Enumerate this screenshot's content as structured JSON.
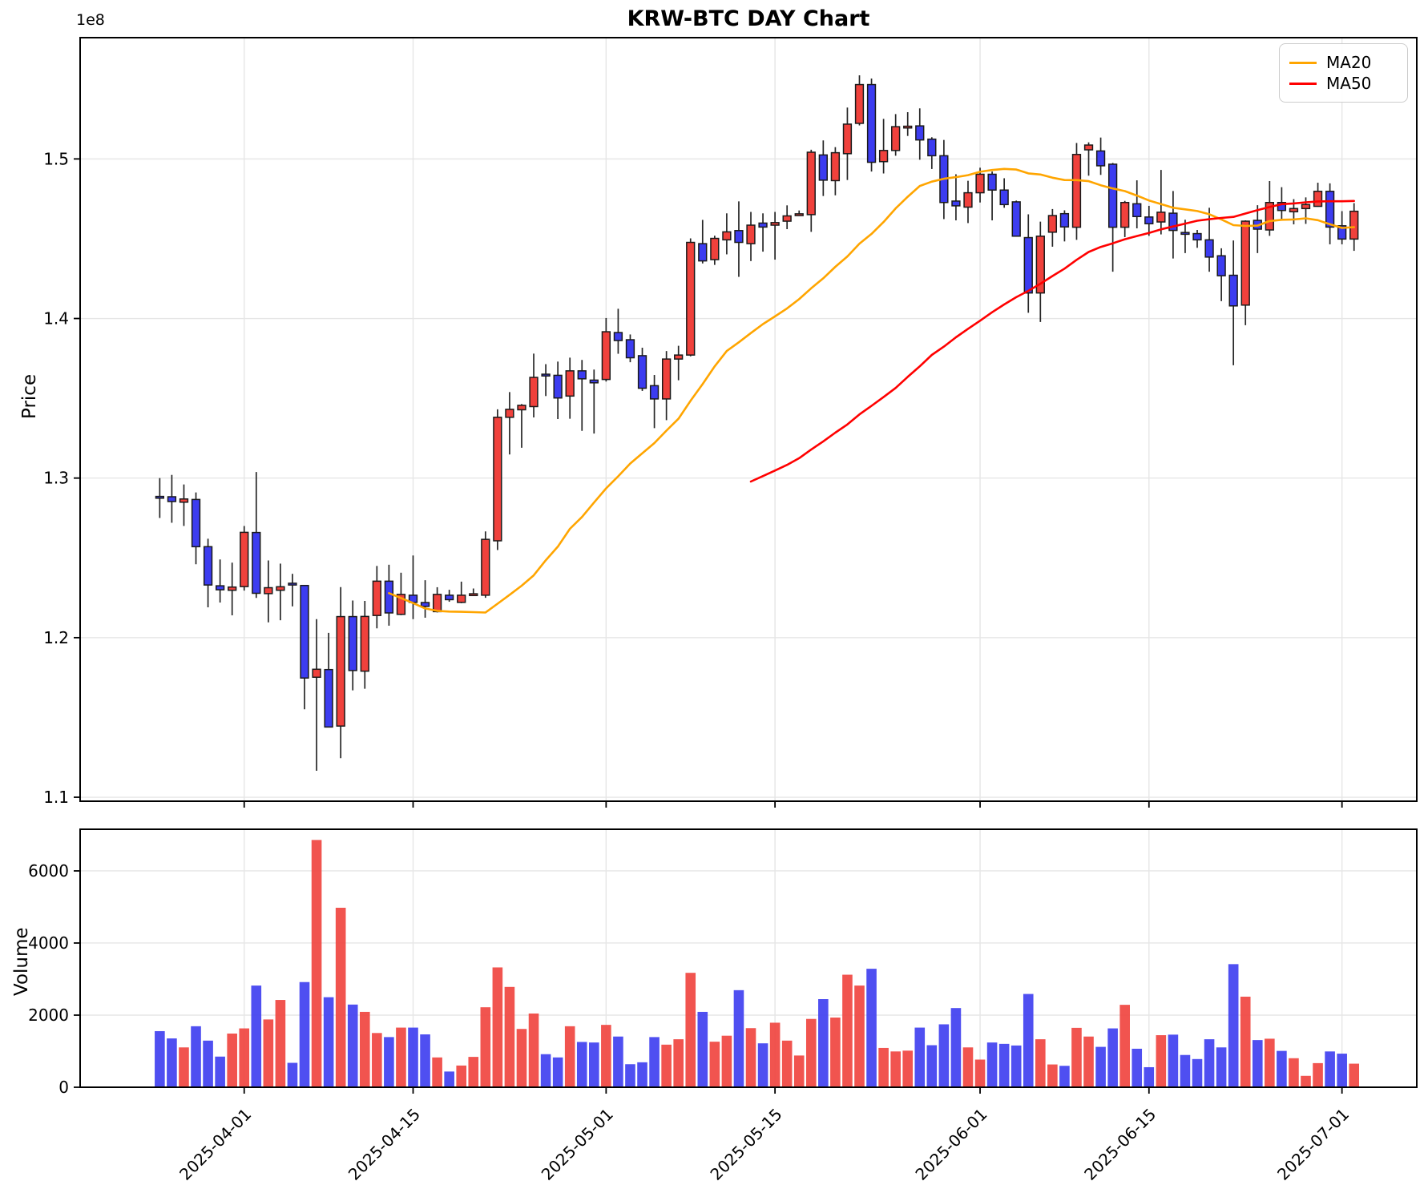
{
  "title": "KRW-BTC DAY Chart",
  "price_axis": {
    "label": "Price",
    "offset_label": "1e8",
    "tick_values": [
      1.1,
      1.2,
      1.3,
      1.4,
      1.5
    ],
    "tick_labels": [
      "1.1",
      "1.2",
      "1.3",
      "1.4",
      "1.5"
    ]
  },
  "volume_axis": {
    "label": "Volume",
    "tick_values": [
      0,
      2000,
      4000,
      6000
    ],
    "tick_labels": [
      "0",
      "2000",
      "4000",
      "6000"
    ]
  },
  "legend": {
    "items": [
      {
        "label": "MA20",
        "color": "#ffa500"
      },
      {
        "label": "MA50",
        "color": "#ff0000"
      }
    ]
  },
  "colors": {
    "up": "#f0413c",
    "down": "#3c3cf0",
    "wick": "#262626",
    "body_edge": "#1a1a1a",
    "ma20": "#ffa500",
    "ma50": "#ff0000",
    "grid": "#e6e6e6",
    "spine": "#000000",
    "background": "#ffffff"
  },
  "chart_data": {
    "type": "candlestick_with_volume",
    "title": "KRW-BTC DAY Chart",
    "price_unit": "1e8 KRW",
    "ylabel": "Price",
    "ylabel2": "Volume",
    "grid": true,
    "legend_position": "upper-right",
    "price_ylim": [
      1.0975,
      1.576
    ],
    "volume_ylim": [
      0,
      7155
    ],
    "ma_overlays": [
      {
        "name": "MA20",
        "period": 20,
        "color": "#ffa500"
      },
      {
        "name": "MA50",
        "period": 50,
        "color": "#ff0000"
      }
    ],
    "xtick_dates": [
      "2025-04-01",
      "2025-04-15",
      "2025-05-01",
      "2025-05-15",
      "2025-06-01",
      "2025-06-15",
      "2025-07-01"
    ],
    "columns": [
      "date",
      "open",
      "high",
      "low",
      "close",
      "volume"
    ],
    "candles": [
      [
        "2025-03-25",
        1.2885,
        1.3,
        1.275,
        1.288,
        1556
      ],
      [
        "2025-03-26",
        1.2883,
        1.302,
        1.272,
        1.2853,
        1354
      ],
      [
        "2025-03-27",
        1.2849,
        1.296,
        1.27,
        1.2869,
        1105
      ],
      [
        "2025-03-28",
        1.2866,
        1.291,
        1.246,
        1.257,
        1692
      ],
      [
        "2025-03-29",
        1.257,
        1.262,
        1.219,
        1.233,
        1293
      ],
      [
        "2025-03-30",
        1.2325,
        1.249,
        1.222,
        1.23,
        850
      ],
      [
        "2025-03-31",
        1.2297,
        1.247,
        1.214,
        1.2317,
        1489
      ],
      [
        "2025-04-01",
        1.232,
        1.27,
        1.2295,
        1.266,
        1632
      ],
      [
        "2025-04-02",
        1.2659,
        1.3038,
        1.2249,
        1.2278,
        2820
      ],
      [
        "2025-04-03",
        1.2276,
        1.2484,
        1.2096,
        1.2313,
        1880
      ],
      [
        "2025-04-04",
        1.2297,
        1.2464,
        1.2109,
        1.2319,
        2421
      ],
      [
        "2025-04-05",
        1.2341,
        1.24,
        1.2196,
        1.2331,
        677
      ],
      [
        "2025-04-06",
        1.2327,
        1.233,
        1.1551,
        1.1747,
        2917
      ],
      [
        "2025-04-07",
        1.1752,
        1.2116,
        1.1166,
        1.1802,
        6858
      ],
      [
        "2025-04-08",
        1.18,
        1.203,
        1.1437,
        1.144,
        2497
      ],
      [
        "2025-04-09",
        1.1446,
        1.2317,
        1.1245,
        1.2132,
        4978
      ],
      [
        "2025-04-10",
        1.2132,
        1.2233,
        1.167,
        1.1794,
        2293
      ],
      [
        "2025-04-11",
        1.179,
        1.223,
        1.168,
        1.2133,
        2090
      ],
      [
        "2025-04-12",
        1.2139,
        1.2449,
        1.2058,
        1.2354,
        1504
      ],
      [
        "2025-04-13",
        1.2354,
        1.2457,
        1.2075,
        1.2155,
        1391
      ],
      [
        "2025-04-14",
        1.2146,
        1.2407,
        1.2141,
        1.2271,
        1654
      ],
      [
        "2025-04-15",
        1.2266,
        1.2515,
        1.2116,
        1.2221,
        1654
      ],
      [
        "2025-04-16",
        1.222,
        1.236,
        1.2125,
        1.2196,
        1466
      ],
      [
        "2025-04-17",
        1.2163,
        1.2316,
        1.2158,
        1.2271,
        827
      ],
      [
        "2025-04-18",
        1.2266,
        1.23,
        1.2225,
        1.2238,
        436
      ],
      [
        "2025-04-19",
        1.2221,
        1.2351,
        1.2216,
        1.2266,
        602
      ],
      [
        "2025-04-20",
        1.2272,
        1.2308,
        1.2268,
        1.2275,
        842
      ],
      [
        "2025-04-21",
        1.2266,
        1.2666,
        1.225,
        1.2616,
        2218
      ],
      [
        "2025-04-22",
        1.2607,
        1.3431,
        1.2549,
        1.3381,
        3323
      ],
      [
        "2025-04-23",
        1.3381,
        1.3539,
        1.3148,
        1.3431,
        2782
      ],
      [
        "2025-04-24",
        1.3428,
        1.3464,
        1.319,
        1.3456,
        1617
      ],
      [
        "2025-04-25",
        1.3448,
        1.378,
        1.338,
        1.3631,
        2045
      ],
      [
        "2025-04-26",
        1.3651,
        1.3714,
        1.3514,
        1.3644,
        917
      ],
      [
        "2025-04-27",
        1.3644,
        1.373,
        1.337,
        1.3502,
        827
      ],
      [
        "2025-04-28",
        1.3514,
        1.3755,
        1.3372,
        1.3672,
        1692
      ],
      [
        "2025-04-29",
        1.3672,
        1.374,
        1.3296,
        1.3622,
        1256
      ],
      [
        "2025-04-30",
        1.3614,
        1.368,
        1.3279,
        1.3597,
        1241
      ],
      [
        "2025-05-01",
        1.3618,
        1.4003,
        1.3605,
        1.3917,
        1730
      ],
      [
        "2025-05-02",
        1.3912,
        1.4061,
        1.3779,
        1.3862,
        1406
      ],
      [
        "2025-05-03",
        1.3867,
        1.39,
        1.3726,
        1.3754,
        639
      ],
      [
        "2025-05-04",
        1.3767,
        1.3817,
        1.3546,
        1.3563,
        692
      ],
      [
        "2025-05-05",
        1.3579,
        1.3646,
        1.3313,
        1.3496,
        1391
      ],
      [
        "2025-05-06",
        1.3496,
        1.3796,
        1.3363,
        1.3746,
        1181
      ],
      [
        "2025-05-07",
        1.3746,
        1.3829,
        1.3613,
        1.3771,
        1331
      ],
      [
        "2025-05-08",
        1.3771,
        1.4502,
        1.3763,
        1.4477,
        3173
      ],
      [
        "2025-05-09",
        1.4469,
        1.4618,
        1.4345,
        1.4361,
        2090
      ],
      [
        "2025-05-10",
        1.4369,
        1.4519,
        1.4336,
        1.4502,
        1263
      ],
      [
        "2025-05-11",
        1.4493,
        1.4659,
        1.4402,
        1.4543,
        1429
      ],
      [
        "2025-05-12",
        1.4551,
        1.4734,
        1.4261,
        1.4477,
        2692
      ],
      [
        "2025-05-13",
        1.4469,
        1.4668,
        1.436,
        1.4585,
        1639
      ],
      [
        "2025-05-14",
        1.4598,
        1.4659,
        1.4419,
        1.4573,
        1218
      ],
      [
        "2025-05-15",
        1.4585,
        1.4668,
        1.4369,
        1.4601,
        1790
      ],
      [
        "2025-05-16",
        1.461,
        1.4709,
        1.456,
        1.4643,
        1293
      ],
      [
        "2025-05-17",
        1.4648,
        1.4677,
        1.4643,
        1.4656,
        880
      ],
      [
        "2025-05-18",
        1.4651,
        1.5058,
        1.4543,
        1.5042,
        1895
      ],
      [
        "2025-05-19",
        1.5025,
        1.5116,
        1.4768,
        1.4867,
        2444
      ],
      [
        "2025-05-20",
        1.4864,
        1.5074,
        1.4772,
        1.5039,
        1933
      ],
      [
        "2025-05-21",
        1.5033,
        1.5322,
        1.4868,
        1.5218,
        3121
      ],
      [
        "2025-05-22",
        1.5223,
        1.5524,
        1.521,
        1.5466,
        2820
      ],
      [
        "2025-05-23",
        1.5466,
        1.5504,
        1.4921,
        1.4979,
        3286
      ],
      [
        "2025-05-24",
        1.4983,
        1.5251,
        1.4909,
        1.5053,
        1090
      ],
      [
        "2025-05-25",
        1.5053,
        1.5281,
        1.502,
        1.5202,
        993
      ],
      [
        "2025-05-26",
        1.5198,
        1.5293,
        1.5144,
        1.5205,
        1015
      ],
      [
        "2025-05-27",
        1.5207,
        1.5317,
        1.4995,
        1.5119,
        1654
      ],
      [
        "2025-05-28",
        1.5124,
        1.5136,
        1.4937,
        1.502,
        1166
      ],
      [
        "2025-05-29",
        1.502,
        1.5119,
        1.4623,
        1.4727,
        1745
      ],
      [
        "2025-05-30",
        1.4736,
        1.4904,
        1.4615,
        1.4706,
        2196
      ],
      [
        "2025-05-31",
        1.4698,
        1.4863,
        1.4598,
        1.4788,
        1105
      ],
      [
        "2025-06-01",
        1.4788,
        1.4945,
        1.4727,
        1.4904,
        767
      ],
      [
        "2025-06-02",
        1.4904,
        1.4921,
        1.4615,
        1.4805,
        1241
      ],
      [
        "2025-06-03",
        1.4805,
        1.4879,
        1.4694,
        1.4714,
        1203
      ],
      [
        "2025-06-04",
        1.4731,
        1.4739,
        1.4513,
        1.4516,
        1158
      ],
      [
        "2025-06-05",
        1.4507,
        1.4653,
        1.4036,
        1.416,
        2587
      ],
      [
        "2025-06-06",
        1.416,
        1.4607,
        1.3978,
        1.4516,
        1331
      ],
      [
        "2025-06-07",
        1.4541,
        1.4686,
        1.445,
        1.4645,
        632
      ],
      [
        "2025-06-08",
        1.4657,
        1.4678,
        1.4483,
        1.4574,
        594
      ],
      [
        "2025-06-09",
        1.4572,
        1.51,
        1.4493,
        1.5028,
        1647
      ],
      [
        "2025-06-10",
        1.5057,
        1.5104,
        1.4895,
        1.5087,
        1406
      ],
      [
        "2025-06-11",
        1.505,
        1.5134,
        1.49,
        1.4957,
        1120
      ],
      [
        "2025-06-12",
        1.4967,
        1.4975,
        1.4293,
        1.4572,
        1632
      ],
      [
        "2025-06-13",
        1.4572,
        1.4737,
        1.451,
        1.4727,
        2286
      ],
      [
        "2025-06-14",
        1.4719,
        1.4866,
        1.4565,
        1.4639,
        1068
      ],
      [
        "2025-06-15",
        1.4636,
        1.4706,
        1.4518,
        1.4594,
        556
      ],
      [
        "2025-06-16",
        1.4605,
        1.4931,
        1.4527,
        1.4666,
        1444
      ],
      [
        "2025-06-17",
        1.466,
        1.4799,
        1.4376,
        1.4552,
        1459
      ],
      [
        "2025-06-18",
        1.4539,
        1.4619,
        1.441,
        1.453,
        895
      ],
      [
        "2025-06-19",
        1.4532,
        1.4555,
        1.4443,
        1.4493,
        782
      ],
      [
        "2025-06-20",
        1.4493,
        1.4694,
        1.4293,
        1.4385,
        1331
      ],
      [
        "2025-06-21",
        1.4393,
        1.444,
        1.4109,
        1.4268,
        1105
      ],
      [
        "2025-06-22",
        1.4271,
        1.4489,
        1.3707,
        1.4079,
        3414
      ],
      [
        "2025-06-23",
        1.4084,
        1.4615,
        1.3958,
        1.461,
        2512
      ],
      [
        "2025-06-24",
        1.4615,
        1.471,
        1.441,
        1.456,
        1308
      ],
      [
        "2025-06-25",
        1.4555,
        1.4861,
        1.4518,
        1.4727,
        1346
      ],
      [
        "2025-06-26",
        1.4727,
        1.4823,
        1.4619,
        1.4677,
        1008
      ],
      [
        "2025-06-27",
        1.4669,
        1.4748,
        1.459,
        1.4689,
        805
      ],
      [
        "2025-06-28",
        1.4689,
        1.4759,
        1.4593,
        1.4714,
        316
      ],
      [
        "2025-06-29",
        1.4703,
        1.4851,
        1.47,
        1.4797,
        669
      ],
      [
        "2025-06-30",
        1.4797,
        1.4847,
        1.4465,
        1.4573,
        993
      ],
      [
        "2025-07-01",
        1.4581,
        1.4673,
        1.4465,
        1.4498,
        932
      ],
      [
        "2025-07-02",
        1.4498,
        1.4723,
        1.4424,
        1.4672,
        654
      ]
    ]
  }
}
